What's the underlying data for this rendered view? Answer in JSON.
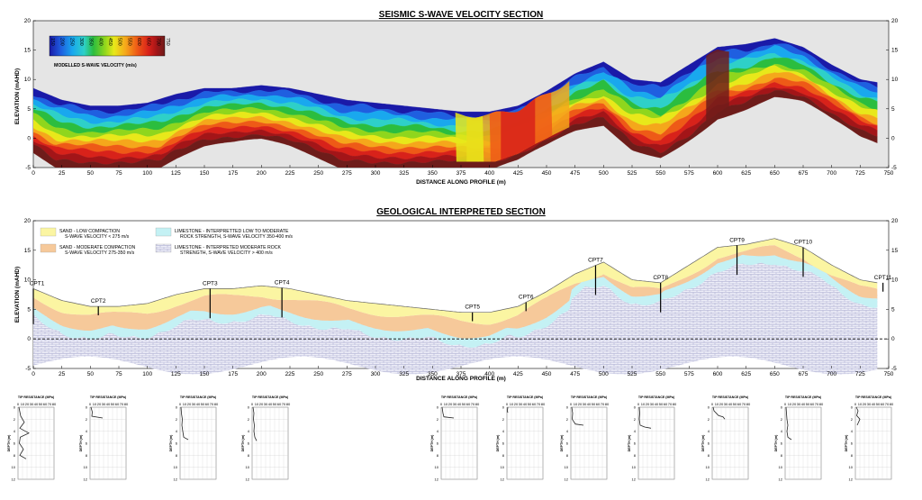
{
  "seismic": {
    "title": "SEISMIC S-WAVE VELOCITY SECTION",
    "xlabel": "DISTANCE ALONG PROFILE (m)",
    "ylabel": "ELEVATION (mAHD)",
    "colorbar_label": "MODELLED S-WAVE VELOCITY (m/s)",
    "colorbar_ticks": [
      "150",
      "200",
      "250",
      "300",
      "350",
      "400",
      "450",
      "500",
      "550",
      "600",
      "650",
      "700",
      "750"
    ],
    "colors": [
      "#1a1aa8",
      "#1f5fe0",
      "#19a8ee",
      "#2ed0c8",
      "#2bbd3f",
      "#8fd61d",
      "#e8e81a",
      "#f5a71b",
      "#ee5a17",
      "#d8221a",
      "#a31518",
      "#6e1c1a"
    ]
  },
  "geology": {
    "title": "GEOLOGICAL INTERPRETED SECTION",
    "xlabel": "DISTANCE ALONG PROFILE (m)",
    "ylabel": "ELEVATION (mAHD)",
    "legend": [
      {
        "key": "sand_low",
        "line1": "SAND - LOW COMPACTION",
        "line2": "S-WAVE VELOCITY < 275 m/s",
        "color": "#fbf5a2"
      },
      {
        "key": "sand_mod",
        "line1": "SAND - MODERATE COMPACTION",
        "line2": "S-WAVE VELOCITY 275-350 m/s",
        "color": "#f6c99a"
      },
      {
        "key": "lime_low",
        "line1": "LIMESTONE - INTERPRETTED LOW TO MODERATE",
        "line2": "ROCK STRENGTH, S-WAVE VELOCITY 350-400 m/s",
        "color": "#c4f1f4"
      },
      {
        "key": "lime_mod",
        "line1": "LIMESTONE - INTERPRETED MODERATE ROCK",
        "line2": "STRENGTH, S-WAVE VELOCITY > 400 m/s",
        "color": "#e4e4f4"
      }
    ],
    "cpts": [
      {
        "label": "CPT1",
        "x": 0
      },
      {
        "label": "CPT2",
        "x": 57
      },
      {
        "label": "CPT3",
        "x": 155
      },
      {
        "label": "CPT4",
        "x": 218
      },
      {
        "label": "CPT5",
        "x": 385
      },
      {
        "label": "CPT6",
        "x": 432
      },
      {
        "label": "CPT7",
        "x": 493
      },
      {
        "label": "CPT8",
        "x": 550
      },
      {
        "label": "CPT9",
        "x": 617
      },
      {
        "label": "CPT10",
        "x": 675
      },
      {
        "label": "CPT11",
        "x": 745
      }
    ]
  },
  "cpt_logs": {
    "title": "TIP RESISTANCE (MPa)",
    "depth_label": "DEPTH (m)",
    "x_ticks": [
      "0",
      "10",
      "20",
      "30",
      "40",
      "50",
      "60",
      "70",
      "80"
    ],
    "depth_ticks": [
      "0",
      "2",
      "4",
      "6",
      "8",
      "10",
      "12"
    ]
  },
  "chart_data": {
    "type": "heatmap",
    "title": "SEISMIC S-WAVE VELOCITY SECTION",
    "xlabel": "DISTANCE ALONG PROFILE (m)",
    "ylabel": "ELEVATION (mAHD)",
    "xlim": [
      0,
      750
    ],
    "ylim": [
      -5,
      20
    ],
    "x_ticks": [
      0,
      25,
      50,
      75,
      100,
      125,
      150,
      175,
      200,
      225,
      250,
      275,
      300,
      325,
      350,
      375,
      400,
      425,
      450,
      475,
      500,
      525,
      550,
      575,
      600,
      625,
      650,
      675,
      700,
      725,
      750
    ],
    "y_ticks": [
      -5,
      0,
      5,
      10,
      15,
      20
    ],
    "colorbar": {
      "label": "MODELLED S-WAVE VELOCITY (m/s)",
      "min": 150,
      "max": 750
    },
    "surface_profile": {
      "x": [
        0,
        25,
        50,
        75,
        100,
        125,
        150,
        175,
        200,
        225,
        250,
        275,
        300,
        325,
        350,
        375,
        400,
        425,
        450,
        475,
        500,
        525,
        550,
        575,
        600,
        625,
        650,
        675,
        700,
        725,
        740
      ],
      "y": [
        8.5,
        6.5,
        5.5,
        5.5,
        6,
        7.5,
        8.5,
        8.5,
        9,
        8.5,
        7.5,
        6.5,
        6,
        5.5,
        5,
        4.5,
        4.5,
        5.5,
        8,
        11,
        13,
        10,
        9.5,
        12.5,
        15.5,
        16,
        17,
        15.5,
        12.5,
        10,
        9.5
      ]
    }
  }
}
